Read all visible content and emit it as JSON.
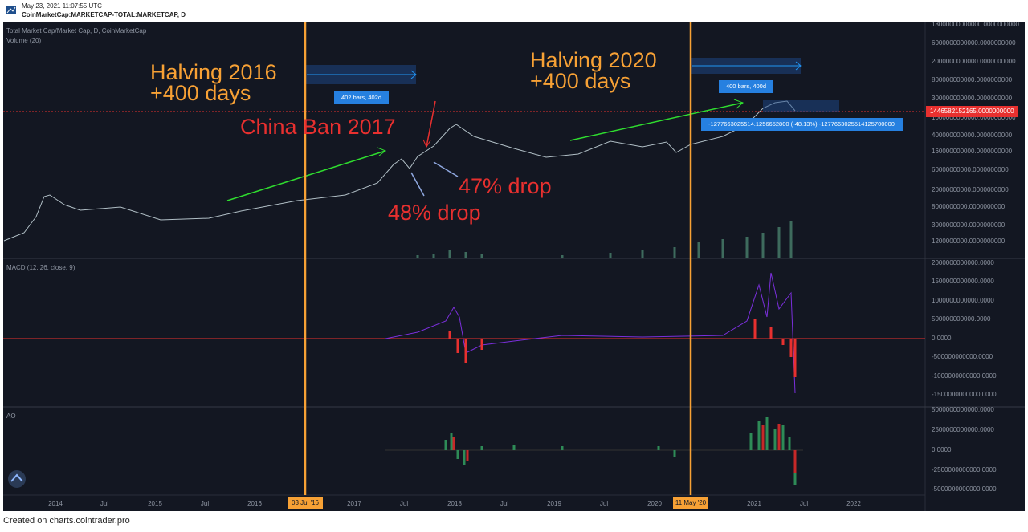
{
  "header": {
    "timestamp": "May 23, 2021 11:07:55 UTC",
    "symbol": "CoinMarketCap:MARKETCAP-TOTAL:MARKETCAP, D"
  },
  "panes": {
    "main": "Total Market Cap/Market Cap, D, CoinMarketCap",
    "volume": "Volume (20)",
    "macd": "MACD (12, 26, close, 9)",
    "ao": "AO"
  },
  "price_axis": [
    "18000000000000.0000000000",
    "6000000000000.0000000000",
    "2000000000000.0000000000",
    "800000000000.0000000000",
    "300000000000.0000000000",
    "1000000000000.0000000000",
    "400000000000.0000000000",
    "160000000000.0000000000",
    "60000000000.0000000000",
    "20000000000.0000000000",
    "8000000000.0000000000",
    "3000000000.0000000000",
    "1200000000.0000000000"
  ],
  "current_price": "1446582152165.0000000000",
  "macd_axis": [
    "2000000000000.0000",
    "1500000000000.0000",
    "1000000000000.0000",
    "500000000000.0000",
    "0.0000",
    "-500000000000.0000",
    "-1000000000000.0000",
    "-1500000000000.0000"
  ],
  "ao_axis": [
    "5000000000000.0000",
    "2500000000000.0000",
    "0.0000",
    "-2500000000000.0000",
    "-5000000000000.0000"
  ],
  "time_axis": [
    "2014",
    "Jul",
    "2015",
    "Jul",
    "2016",
    "2017",
    "Jul",
    "2018",
    "Jul",
    "2019",
    "Jul",
    "2020",
    "2021",
    "Jul",
    "2022"
  ],
  "markers": [
    "03 Jul '16",
    "11 May '20"
  ],
  "annotations": {
    "halving_2016": "Halving 2016",
    "days_2016": "+400 days",
    "halving_2020": "Halving 2020",
    "days_2020": "+400 days",
    "china_ban": "China Ban 2017",
    "drop_47": "47% drop",
    "drop_48": "48% drop"
  },
  "measures": [
    "402 bars, 402d",
    "400 bars, 400d",
    "-1277663025514.1256652800 (-48.13%) -1277663025514125700000"
  ],
  "footer": "Created on charts.cointrader.pro"
}
